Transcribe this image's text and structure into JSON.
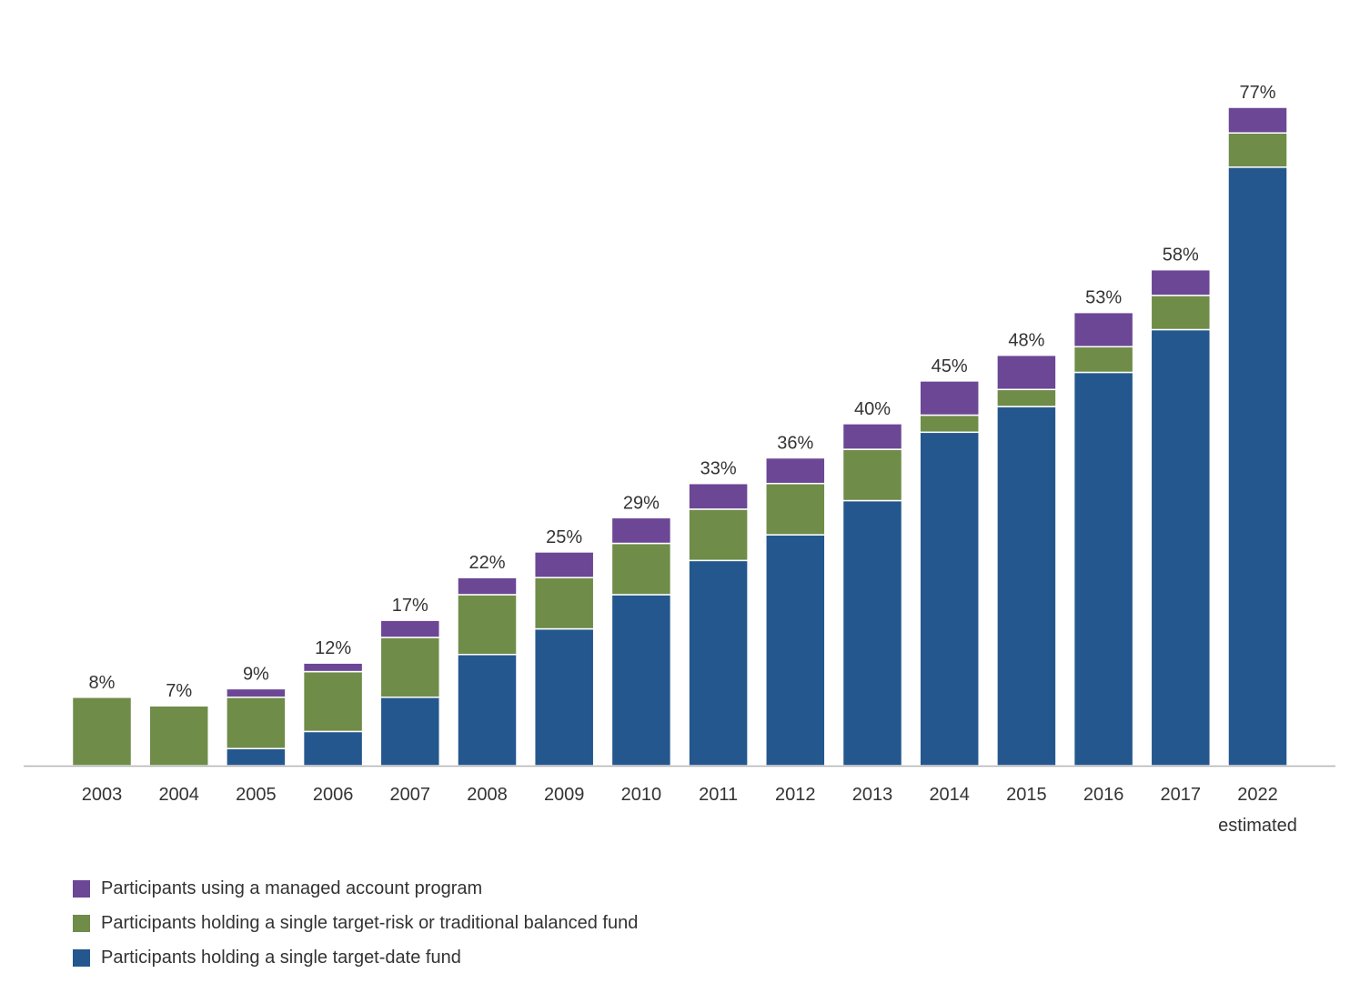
{
  "chart_data": {
    "type": "bar",
    "stacked": true,
    "categories": [
      "2003",
      "2004",
      "2005",
      "2006",
      "2007",
      "2008",
      "2009",
      "2010",
      "2011",
      "2012",
      "2013",
      "2014",
      "2015",
      "2016",
      "2017",
      "2022"
    ],
    "category_sublabels": [
      "",
      "",
      "",
      "",
      "",
      "",
      "",
      "",
      "",
      "",
      "",
      "",
      "",
      "",
      "",
      "estimated"
    ],
    "series": [
      {
        "name": "Participants holding a single target-date fund",
        "color": "#24578e",
        "values": [
          0,
          0,
          2,
          4,
          8,
          13,
          16,
          20,
          24,
          27,
          31,
          39,
          42,
          46,
          51,
          70
        ]
      },
      {
        "name": "Participants holding a single target-risk or traditional balanced fund",
        "color": "#6f8c48",
        "values": [
          8,
          7,
          6,
          7,
          7,
          7,
          6,
          6,
          6,
          6,
          6,
          2,
          2,
          3,
          4,
          4
        ]
      },
      {
        "name": "Participants using a managed account program",
        "color": "#6b4795",
        "values": [
          0,
          0,
          1,
          1,
          2,
          2,
          3,
          3,
          3,
          3,
          3,
          4,
          4,
          4,
          3,
          3
        ]
      }
    ],
    "totals": [
      "8%",
      "7%",
      "9%",
      "12%",
      "17%",
      "22%",
      "25%",
      "29%",
      "33%",
      "36%",
      "40%",
      "45%",
      "48%",
      "53%",
      "58%",
      "77%"
    ],
    "ylim": [
      0,
      80
    ],
    "grid": false,
    "legend_position": "bottom-left"
  },
  "legend": [
    {
      "label": "Participants using a managed account program",
      "color": "#6b4795"
    },
    {
      "label": "Participants holding a single target-risk or traditional balanced fund",
      "color": "#6f8c48"
    },
    {
      "label": "Participants holding a single target-date fund",
      "color": "#24578e"
    }
  ]
}
